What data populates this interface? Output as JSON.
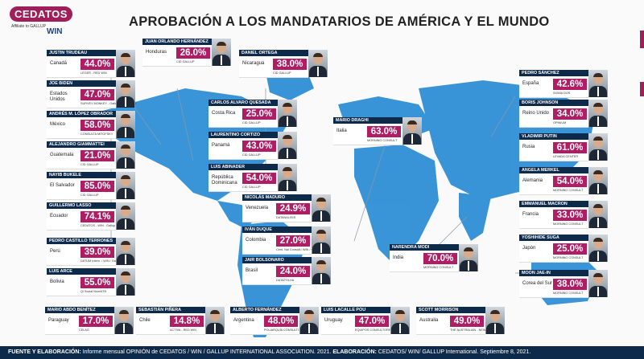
{
  "header": {
    "logo_text": "CEDATOS",
    "logo_sub": "Affiliate to GALLUP",
    "logo_win": "WIN",
    "title": "APROBACIÓN A LOS MANDATARIOS DE AMÉRICA Y EL MUNDO"
  },
  "colors": {
    "accent": "#b01d65",
    "navy": "#0e2a4a",
    "map": "#2f8fd6"
  },
  "leaders": [
    {
      "name": "JUSTIN TRUDEAU",
      "country": "Canadá",
      "pct": "44.0%",
      "source": "LEGER - RED WIN"
    },
    {
      "name": "JOE BIDEN",
      "country": "Estados Unidos",
      "pct": "47.0%",
      "source": "SURVEY MONKEY - Gallup International"
    },
    {
      "name": "ANDRÉS M. LÓPEZ OBRADOR",
      "country": "México",
      "pct": "58.0%",
      "source": "CONSULTA MITOFSKY"
    },
    {
      "name": "ALEJANDRO GIAMMATTEI",
      "country": "Guatemala",
      "pct": "21.0%",
      "source": "CID GALLUP"
    },
    {
      "name": "NAYIB BUKELE",
      "country": "El Salvador",
      "pct": "85.0%",
      "source": "CID GALLUP"
    },
    {
      "name": "GUILLERMO LASSO",
      "country": "Ecuador",
      "pct": "74.1%",
      "source": "CEDATOS - WIN - Gallup International"
    },
    {
      "name": "PEDRO CASTILLO TERRONES",
      "country": "Perú",
      "pct": "39.0%",
      "source": "DATUM Intern. / WIN / Gallup Intern."
    },
    {
      "name": "LUIS ARCE",
      "country": "Bolivia",
      "pct": "55.0%",
      "source": "Ql Social Now/ATB"
    },
    {
      "name": "JUAN ORLANDO HERNÁNDEZ",
      "country": "Honduras",
      "pct": "26.0%",
      "source": "CID GALLUP"
    },
    {
      "name": "DANIEL ORTEGA",
      "country": "Nicaragua",
      "pct": "38.0%",
      "source": "CID GALLUP"
    },
    {
      "name": "CARLOS ALVARO QUESADA",
      "country": "Costa Rica",
      "pct": "25.0%",
      "source": "CID GALLUP"
    },
    {
      "name": "LAURENTINO CORTIZO",
      "country": "Panamá",
      "pct": "43.0%",
      "source": "CID GALLUP"
    },
    {
      "name": "LUIS ABINADER",
      "country": "República Dominicana",
      "pct": "54.0%",
      "source": "CID GALLUP"
    },
    {
      "name": "NICOLÁS MADURO",
      "country": "Venezuela",
      "pct": "24.9%",
      "source": "DATANALISIS"
    },
    {
      "name": "IVÁN DUQUE",
      "country": "Colombia",
      "pct": "27.0%",
      "source": "Cent. Nal Consult./ WIN / Gallup Intern."
    },
    {
      "name": "JAIR BOLSONARO",
      "country": "Brasil",
      "pct": "24.0%",
      "source": "DATAFOLHA"
    },
    {
      "name": "MARIO DRAGHI",
      "country": "Italia",
      "pct": "63.0%",
      "source": "MORNING CONSULT"
    },
    {
      "name": "PEDRO SÁNCHEZ",
      "country": "España",
      "pct": "42.6%",
      "source": "SIGMA DOS"
    },
    {
      "name": "BORIS JOHNSON",
      "country": "Reino Unido",
      "pct": "34.0%",
      "source": "OPINIUM"
    },
    {
      "name": "VLADIMIR PUTIN",
      "country": "Rusia",
      "pct": "61.0%",
      "source": "LEVADA CENTER"
    },
    {
      "name": "ANGELA MERKEL",
      "country": "Alemania",
      "pct": "54.0%",
      "source": "MORNING CONSULT"
    },
    {
      "name": "EMMANUEL MACRON",
      "country": "Francia",
      "pct": "33.0%",
      "source": "MORNING CONSULT"
    },
    {
      "name": "YOSHIHIDE SUGA",
      "country": "Japón",
      "pct": "25.0%",
      "source": "MORNING CONSULT"
    },
    {
      "name": "MOON JAE-IN",
      "country": "Corea del Sur",
      "pct": "38.0%",
      "source": "MORNING CONSULT"
    },
    {
      "name": "NARENDRA MODI",
      "country": "India",
      "pct": "70.0%",
      "source": "MORNING CONSULT"
    },
    {
      "name": "MARIO ABDO BENÍTEZ",
      "country": "Paraguay",
      "pct": "17.0%",
      "source": "CELAG"
    },
    {
      "name": "SEBASTIÁN PIÑERA",
      "country": "Chile",
      "pct": "14.8%",
      "source": "ACTIVA - RED WIN"
    },
    {
      "name": "ALBERTO FERNÁNDEZ",
      "country": "Argentina",
      "pct": "48.0%",
      "source": "POLIARQUÍA CONSULTORES"
    },
    {
      "name": "LUIS LACALLE POU",
      "country": "Uruguay",
      "pct": "47.0%",
      "source": "EQUIPOS CONSULTORES"
    },
    {
      "name": "SCOTT MORRISON",
      "country": "Australia",
      "pct": "49.0%",
      "source": "THE AUSTRALIAN - NEWSPOLL"
    }
  ],
  "footer": {
    "label1": "FUENTE Y ELABORACIÓN:",
    "text1": " Informe mensual OPINIÓN de CEDATOS / WIN / GALLUP INTERNATIONAL ASSOCIATION. 2021. ",
    "label2": "ELABORACIÓN:",
    "text2": " CEDATOS/ WIN/ GALLUP International. Septiembre 8, 2021."
  }
}
